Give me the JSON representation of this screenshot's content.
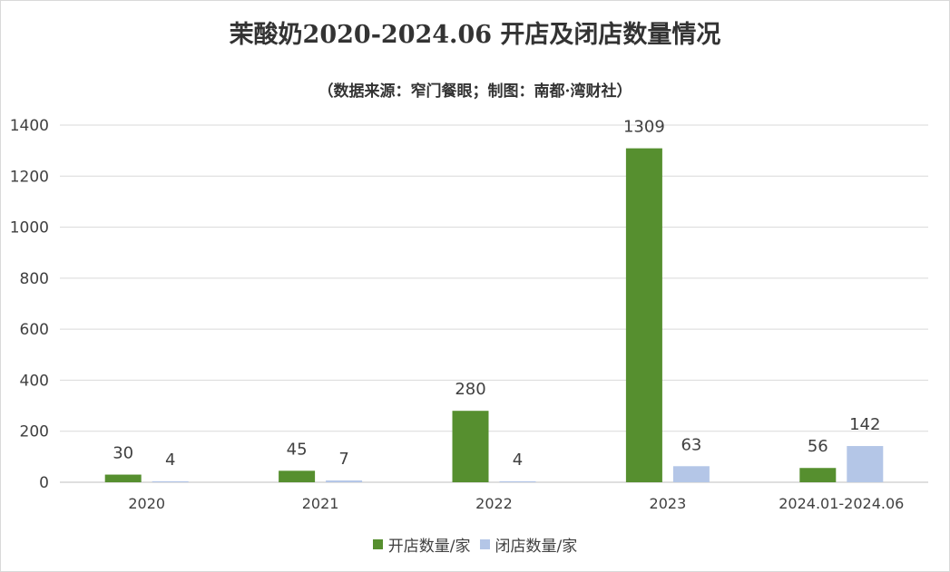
{
  "title": "茉酸奶2020-2024.06 开店及闭店数量情况",
  "subtitle": "（数据来源：窄门餐眼；制图：南都·湾财社）",
  "chart_data": {
    "type": "bar",
    "title": "茉酸奶2020-2024.06 开店及闭店数量情况",
    "subtitle": "（数据来源：窄门餐眼；制图：南都·湾财社）",
    "categories": [
      "2020",
      "2021",
      "2022",
      "2023",
      "2024.01-2024.06"
    ],
    "series": [
      {
        "name": "开店数量/家",
        "values": [
          30,
          45,
          280,
          1309,
          56
        ],
        "color": "#568f2f"
      },
      {
        "name": "闭店数量/家",
        "values": [
          4,
          7,
          4,
          63,
          142
        ],
        "color": "#b4c6e7"
      }
    ],
    "ylim": [
      0,
      1400
    ],
    "yticks": [
      0,
      200,
      400,
      600,
      800,
      1000,
      1200,
      1400
    ],
    "grid": true,
    "legend": "bottom",
    "data_labels": true
  }
}
